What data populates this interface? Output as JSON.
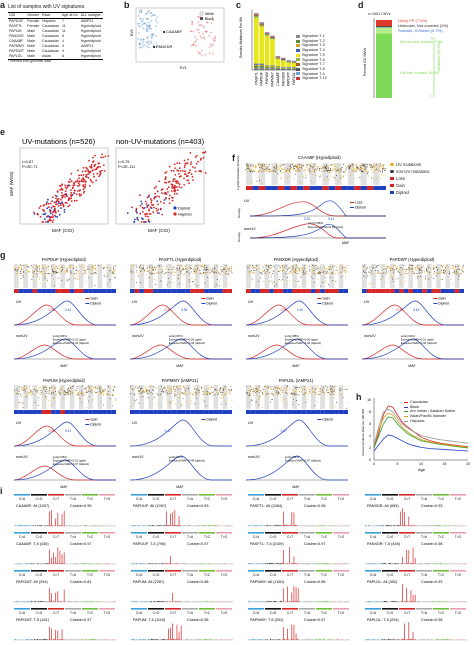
{
  "panels": {
    "a": "a",
    "b": "b",
    "c": "c",
    "d": "d",
    "e": "e",
    "f": "f",
    "g": "g",
    "h": "h",
    "i": "i"
  },
  "panel_a": {
    "title": "List of samples with UV signatures",
    "headers": [
      "UID",
      "Gender",
      "Race",
      "Age at Dx",
      "ALL subtype"
    ],
    "rows": [
      [
        "PAPDUF",
        "Female",
        "Hispanic",
        "7",
        "iAMP21"
      ],
      [
        "PASFTL",
        "Female",
        "Caucasian",
        "11",
        "Hyperdiploid"
      ],
      [
        "PAPUM",
        "Male",
        "Caucasian",
        "11",
        "Hyperdiploid"
      ],
      [
        "PANXDR",
        "Male",
        "Caucasian",
        "6",
        "Hyperdiploid"
      ],
      [
        "CAAABF",
        "Male",
        "Caucasian",
        "4",
        "Hyperdiploid"
      ],
      [
        "PAPMMY",
        "Male",
        "Caucasian",
        "4",
        "iAMP21"
      ],
      [
        "PAPDWT",
        "Male",
        "Caucasian",
        "4",
        "Hyperdiploid"
      ],
      [
        "PAPLDL",
        "Male",
        "Asian",
        "6",
        "Hyperdiploid"
      ]
    ],
    "footnote": "* inferred from genomic data"
  },
  "panel_b": {
    "legend": [
      "White",
      "Black"
    ],
    "labels": [
      "CAAABF",
      "PANXDR"
    ],
    "xlabel": "EV1",
    "ylabel": "EV2"
  },
  "panel_c": {
    "ylabel": "Somatic Mutations Per Mb",
    "samples": [
      "PASFTL",
      "PAPDUF",
      "PAPUM",
      "PAPMMY",
      "CAAABF",
      "PANXDR",
      "PAPDWT",
      "PAPLDL"
    ],
    "legend": [
      "Signature T-1",
      "Signature T-2",
      "Signature T-3",
      "Signature T-4",
      "Signature T-5",
      "Signature T-6",
      "Signature T-7",
      "Signature T-8",
      "Signature T-9",
      "Signature T-10"
    ]
  },
  "panel_d": {
    "top_label": "n=1061 CNVs",
    "ylabel": "Percent CO SNVs",
    "labels": [
      "Likely FP (7.9%)",
      "Unknown, Not covered (1%)",
      "Somatic, SV/indel (0.7%)",
      "Not cell-rate, somatic: 7.8%",
      "Cell rate, somatic: 82.6%",
      "Validated (90.4%)"
    ]
  },
  "panel_e": {
    "plots": [
      {
        "title": "UV-mutations (n=526)",
        "stats": "r=0.87\nP<2E-71",
        "xlabel": "MAF (CGI)",
        "ylabel": "MAF (WGS)"
      },
      {
        "title": "non-UV-mutations (n=403)",
        "stats": "r=0.75\nP<2E-111",
        "xlabel": "MAF (CGI)",
        "ylabel": ""
      }
    ],
    "legend": [
      "Diploid",
      "Haploid"
    ]
  },
  "panel_f": {
    "title": "CAAABF (Hypodiploid)",
    "legend": [
      "UV mutations",
      "non-UV mutations",
      "Loss",
      "Gain",
      "Diploid"
    ],
    "rows": [
      "UV",
      "nonUV"
    ],
    "ylabel_track": "Log10(intermutation distance)",
    "ylabel_density": "Density",
    "mini_legend": [
      "Loss",
      "Diploid"
    ],
    "annot": [
      "purity=98%",
      "Expected MAF=0.50 (loss)"
    ],
    "peaks": [
      "0.22",
      "0.41"
    ],
    "xlabel": "MAF"
  },
  "panel_g": {
    "row1": [
      {
        "title": "PAPDUF (Hyperdiploid)",
        "peaks": [
          "0.31",
          "0.42"
        ],
        "annot": "purity=84%\nExpected MAF=0.31 (gain)\nExpected MAF=0.42 (diploid)"
      },
      {
        "title": "PASFTL (Hyperdiploid)",
        "peaks": [
          "0.28",
          "0.35"
        ],
        "annot": "purity=87%\nExpected MAF=0.29 (gain)\nExpected MAF=0.43 (diploid)"
      },
      {
        "title": "PANXDR (Hyperdiploid)",
        "peaks": [
          "0.30",
          "0.40"
        ],
        "annot": "purity=88%\nExpected MAF=0.30 (gain)\nExpected MAF=0.44 (diploid)"
      },
      {
        "title": "PAPDWT (Hyperdiploid)",
        "peaks": [
          "0.32",
          "0.43"
        ],
        "annot": "purity=92%\nExpected MAF=0.31 (gain)\nExpected MAF=0.46 (diploid)"
      }
    ],
    "row2": [
      {
        "title": "PAPUM (Hyperdiploid)",
        "peaks": [
          "0.32",
          "0.41"
        ],
        "annot": "purity=95%\nExpected MAF=0.32 (gain)\nExpected MAF=0.47 (diploid)"
      },
      {
        "title": "PAPMMY (iAMP21)",
        "peaks": [
          "0.47"
        ],
        "annot": "purity=97%\nExpected MAF=0.48 (diploid)"
      },
      {
        "title": "PAPLDL (iAMP21)",
        "peaks": [
          "0.47"
        ],
        "annot": "purity=94%\nExpected MAF=0.47 (diploid)"
      }
    ],
    "legend_gain": [
      "Gain",
      "Diploid"
    ],
    "legend_dip": [
      "Diploid"
    ],
    "rows": [
      "UV",
      "nonUV"
    ],
    "xlabel": "MAF",
    "ylabel_track": "Log10(intermutation distance)",
    "ylabel_density": "Density"
  },
  "panel_h": {
    "ylabel": "Annual Incidence Rate per 100,000",
    "xlabel": "Age",
    "legend": [
      "Caucasian",
      "Black",
      "Am Indian / Alaskan Native",
      "Asian/Pacific Islander",
      "Hispanic"
    ],
    "colors": [
      "#d62728",
      "#1f3fbf",
      "#2ca02c",
      "#d4a017",
      "#9a9a9a"
    ]
  },
  "panel_i": {
    "categories": [
      "C>A",
      "C>G",
      "C>T",
      "T>A",
      "T>C",
      "T>G"
    ],
    "cat_colors": [
      "#3aa0d8",
      "#111111",
      "#d62728",
      "#aaaaaa",
      "#6fbf3a",
      "#e8a0b0"
    ],
    "ylabel": "Mutation Type Probability",
    "cells": [
      [
        "CAAABF: All (1097)",
        "Cosine=0.95"
      ],
      [
        "PAPDUF: All (1097)",
        "Cosine=0.93"
      ],
      [
        "PASFTL: All (2484)",
        "Cosine=0.96"
      ],
      [
        "PANXDR: All (655)",
        "Cosine=0.93"
      ],
      [
        "CAAABF: T-5 (436)",
        "Cosine=0.97"
      ],
      [
        "PAPDUF: T-5 (796)",
        "Cosine=0.97"
      ],
      [
        "PASFTL: T-5 (2109)",
        "Cosine=0.97"
      ],
      [
        "PANXDR: T-5 (445)",
        "Cosine=0.98"
      ],
      [
        "PAPDWT: All (294)",
        "Cosine=0.81"
      ],
      [
        "PAPUM: All (2287)",
        "Cosine=0.88"
      ],
      [
        "PAPMMY: All (1180)",
        "Cosine=0.86"
      ],
      [
        "PAPLDL: All (352)",
        "Cosine=0.93"
      ],
      [
        "PAPDWT: T-5 (161)",
        "Cosine=0.97"
      ],
      [
        "PAPUM: T-5 (1116)",
        "Cosine=0.98"
      ],
      [
        "PAPMMY: T-5 (531)",
        "Cosine=0.97"
      ],
      [
        "PAPLDL: T-5 (294)",
        "Cosine=0.98"
      ]
    ]
  },
  "chart_data": [
    {
      "type": "bar",
      "id": "c",
      "categories": [
        "PASFTL",
        "PAPDUF",
        "PAPUM",
        "PAPMMY",
        "CAAABF",
        "PANXDR",
        "PAPDWT",
        "PAPLDL"
      ],
      "series": [
        {
          "name": "Signature T-1",
          "values": [
            0.4,
            0.4,
            0.3,
            0.3,
            0.2,
            0.2,
            0.2,
            0.2
          ],
          "color": "#8a8a8a"
        },
        {
          "name": "Signature T-2",
          "values": [
            0.3,
            0.3,
            0.2,
            0.2,
            0.2,
            0.1,
            0.1,
            0.1
          ],
          "color": "#5d8a3a"
        },
        {
          "name": "Signature T-3",
          "values": [
            0.2,
            0.2,
            0.2,
            0.2,
            0.1,
            0.1,
            0.1,
            0.1
          ],
          "color": "#c9a227"
        },
        {
          "name": "Signature T-4",
          "values": [
            0.2,
            0.2,
            0.1,
            0.1,
            0.1,
            0.1,
            0.1,
            0.1
          ],
          "color": "#3a5fb0"
        },
        {
          "name": "Signature T-5",
          "values": [
            7.9,
            6.4,
            5.1,
            4.5,
            1.3,
            1.1,
            0.8,
            0.7
          ],
          "color": "#e6e61a"
        },
        {
          "name": "Signature T-6",
          "values": [
            0.3,
            0.2,
            0.2,
            0.2,
            0.1,
            0.1,
            0.1,
            0.1
          ],
          "color": "#8ab24a"
        },
        {
          "name": "Signature T-7",
          "values": [
            0.2,
            0.2,
            0.1,
            0.1,
            0.1,
            0.1,
            0.1,
            0.1
          ],
          "color": "#b05a2a"
        },
        {
          "name": "Signature T-8",
          "values": [
            0.1,
            0.1,
            0.1,
            0.1,
            0.1,
            0.1,
            0.1,
            0.1
          ],
          "color": "#555555"
        },
        {
          "name": "Signature T-9",
          "values": [
            0.1,
            0.1,
            0.1,
            0.1,
            0.1,
            0.1,
            0.1,
            0.1
          ],
          "color": "#6fa0d8"
        },
        {
          "name": "Signature T-10",
          "values": [
            0.1,
            0.1,
            0.1,
            0.1,
            0.1,
            0.1,
            0.0,
            0.0
          ],
          "color": "#c43a3a"
        }
      ],
      "ylim": [
        0,
        10
      ]
    },
    {
      "type": "bar",
      "id": "d",
      "categories": [
        "CNVs"
      ],
      "series": [
        {
          "name": "Cell rate, somatic",
          "values": [
            82.6
          ],
          "color": "#7ed957"
        },
        {
          "name": "Not cell-rate, somatic",
          "values": [
            7.8
          ],
          "color": "#b6ec8a"
        },
        {
          "name": "Somatic, SV/indel",
          "values": [
            0.7
          ],
          "color": "#5a8ad8"
        },
        {
          "name": "Unknown, Not covered",
          "values": [
            1.0
          ],
          "color": "#222222"
        },
        {
          "name": "Likely FP",
          "values": [
            7.9
          ],
          "color": "#e03a2a"
        }
      ],
      "ylim": [
        0,
        100
      ]
    },
    {
      "type": "line",
      "id": "h",
      "x": [
        0,
        1,
        2,
        3,
        4,
        5,
        6,
        7,
        8,
        9,
        10,
        12,
        14,
        16,
        18,
        20
      ],
      "series": [
        {
          "name": "Caucasian",
          "values": [
            2.0,
            4.5,
            7.5,
            9.0,
            8.8,
            7.5,
            6.3,
            5.6,
            5.0,
            4.4,
            3.8,
            3.2,
            2.8,
            2.6,
            2.4,
            2.2
          ]
        },
        {
          "name": "Black",
          "values": [
            1.5,
            2.5,
            3.5,
            4.2,
            4.0,
            3.6,
            3.2,
            2.8,
            2.5,
            2.3,
            2.1,
            1.9,
            1.8,
            1.7,
            1.6,
            1.5
          ]
        },
        {
          "name": "Am Indian / Alaskan Native",
          "values": [
            2.0,
            4.0,
            6.0,
            7.2,
            7.0,
            6.0,
            5.2,
            4.5,
            4.0,
            3.6,
            3.2,
            2.9,
            2.6,
            2.4,
            2.2,
            2.0
          ]
        },
        {
          "name": "Asian/Pacific Islander",
          "values": [
            2.5,
            5.0,
            7.0,
            7.8,
            7.5,
            6.5,
            5.5,
            4.8,
            4.2,
            3.8,
            3.4,
            3.0,
            2.7,
            2.5,
            2.3,
            2.1
          ]
        },
        {
          "name": "Hispanic",
          "values": [
            2.5,
            5.5,
            8.0,
            8.5,
            8.0,
            7.0,
            6.0,
            5.4,
            4.9,
            4.5,
            4.1,
            3.7,
            3.4,
            3.2,
            3.0,
            2.8
          ]
        }
      ],
      "xlim": [
        0,
        20
      ],
      "ylim": [
        0,
        10
      ]
    }
  ]
}
